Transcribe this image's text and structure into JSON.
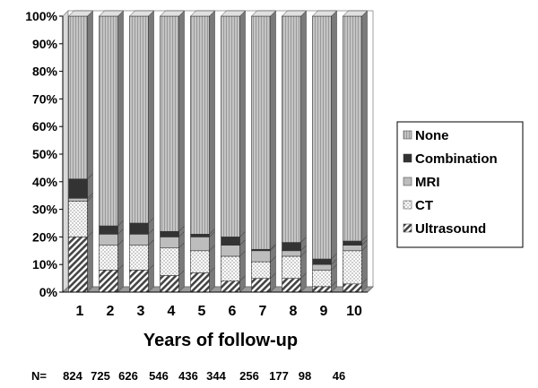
{
  "chart_data": {
    "type": "bar",
    "stacked": true,
    "percent": true,
    "categories": [
      "1",
      "2",
      "3",
      "4",
      "5",
      "6",
      "7",
      "8",
      "9",
      "10"
    ],
    "xlabel": "Years of follow-up",
    "ylabel": "",
    "ylim": [
      0,
      100
    ],
    "yticks": [
      "0%",
      "10%",
      "20%",
      "30%",
      "40%",
      "50%",
      "60%",
      "70%",
      "80%",
      "90%",
      "100%"
    ],
    "series": [
      {
        "name": "Ultrasound",
        "color": "#555555",
        "pattern": "diagonal-hatch",
        "values": [
          20,
          8,
          8,
          6,
          7,
          4,
          5,
          5,
          2,
          3
        ]
      },
      {
        "name": "CT",
        "color": "#ffffff",
        "pattern": "dots",
        "values": [
          13,
          9,
          9,
          10,
          8,
          9,
          6,
          8,
          6,
          12
        ]
      },
      {
        "name": "MRI",
        "color": "#bdbdbd",
        "pattern": "solid",
        "values": [
          1,
          4,
          4,
          4,
          5,
          4,
          4,
          2,
          2,
          2
        ]
      },
      {
        "name": "Combination",
        "color": "#333333",
        "pattern": "solid",
        "values": [
          7,
          3,
          4,
          2,
          1,
          3,
          0.5,
          3,
          2,
          1.5
        ]
      },
      {
        "name": "None",
        "color": "#bdbdbd",
        "pattern": "vertical-lines",
        "values": [
          59,
          76,
          75,
          78,
          79,
          80,
          84.5,
          82,
          88,
          81.5
        ]
      }
    ],
    "legend": {
      "position": "right",
      "order": [
        "None",
        "Combination",
        "MRI",
        "CT",
        "Ultrasound"
      ]
    },
    "grid": false,
    "n_prefix": "N=",
    "n_values": [
      "824",
      "725",
      "626",
      "546",
      "436",
      "344",
      "256",
      "177",
      "98",
      "46"
    ]
  }
}
